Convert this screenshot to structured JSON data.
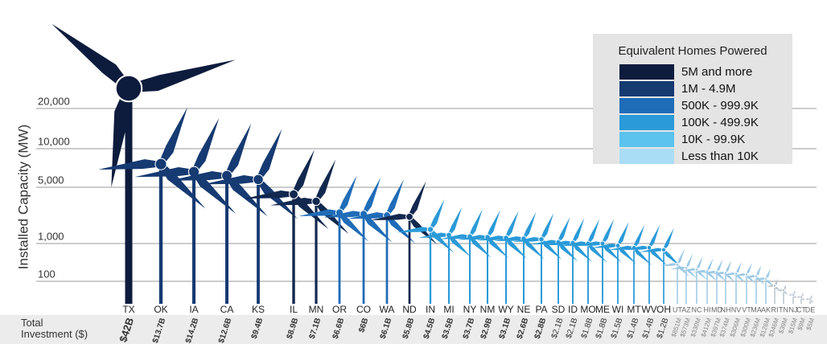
{
  "chart_data": {
    "type": "turbine",
    "y_label": "Installed Capacity (MW)",
    "investment_label": "Total Investment ($)",
    "ylim": [
      0,
      30000
    ],
    "yticks": [
      100,
      {
        "value": 1000,
        "label": "1,000"
      },
      {
        "value": 5000,
        "label": "5,000"
      },
      {
        "value": 10000,
        "label": "10,000"
      },
      {
        "value": 20000,
        "label": "20,000"
      }
    ],
    "grid": true,
    "categories": [
      "TX",
      "OK",
      "IA",
      "CA",
      "KS",
      "IL",
      "MN",
      "OR",
      "CO",
      "WA",
      "ND",
      "IN",
      "MI",
      "NY",
      "NM",
      "WY",
      "NE",
      "PA",
      "SD",
      "ID",
      "MO",
      "ME",
      "WI",
      "MT",
      "WV",
      "OH",
      "UT",
      "AZ",
      "NC",
      "HI",
      "MD",
      "NH",
      "NV",
      "VT",
      "MA",
      "AK",
      "RI",
      "TN",
      "NJ",
      "CT",
      "DE"
    ],
    "values": [
      25000,
      8000,
      7000,
      6500,
      6000,
      4500,
      4000,
      3200,
      3100,
      3000,
      2900,
      2000,
      1600,
      1500,
      1450,
      1400,
      1350,
      1300,
      1100,
      1050,
      1000,
      1000,
      950,
      900,
      900,
      850,
      500,
      420,
      380,
      340,
      320,
      300,
      280,
      260,
      220,
      160,
      80,
      60,
      40,
      30,
      20
    ],
    "investment": [
      "$42B",
      "$13.7B",
      "$14.2B",
      "$12.6B",
      "$9.4B",
      "$8.9B",
      "$7.1B",
      "$6.6B",
      "$6B",
      "$6.1B",
      "$5.8B",
      "$4.5B",
      "$3.5B",
      "$3.7B",
      "$2.9B",
      "$3.1B",
      "$2.6B",
      "$2.8B",
      "$2.1B",
      "$2.1B",
      "$1.8B",
      "$1.8B",
      "$1.5B",
      "$1.4B",
      "$1.4B",
      "$1.2B",
      "$851M",
      "$573M",
      "$330M",
      "$412M",
      "$397M",
      "$374M",
      "$306M",
      "$300M",
      "$236M",
      "$126M",
      "$346M",
      "$39M",
      "$15M",
      "$9M",
      "$5M"
    ],
    "colors": [
      "#0d1b3d",
      "#163a72",
      "#163a72",
      "#163a72",
      "#163a72",
      "#12284f",
      "#12284f",
      "#1f6cb8",
      "#1f6cb8",
      "#1f6cb8",
      "#12284f",
      "#2a9ad8",
      "#2a9ad8",
      "#2a9ad8",
      "#2a9ad8",
      "#2a9ad8",
      "#2a9ad8",
      "#2a9ad8",
      "#2a9ad8",
      "#2a9ad8",
      "#2a9ad8",
      "#2a9ad8",
      "#2a9ad8",
      "#2a9ad8",
      "#2a9ad8",
      "#2a9ad8",
      "#9cc9e6",
      "#9cc9e6",
      "#9cc9e6",
      "#9cc9e6",
      "#9cc9e6",
      "#9cc9e6",
      "#9cc9e6",
      "#9cc9e6",
      "#9cc9e6",
      "#9cc9e6",
      "#b9c4cc",
      "#b9c4cc",
      "#b9c4cc",
      "#b9c4cc",
      "#b9c4cc"
    ],
    "legend": {
      "title": "Equivalent Homes Powered",
      "items": [
        {
          "name": "5M and more",
          "color": "#0d1b3d"
        },
        {
          "name": "1M - 4.9M",
          "color": "#163a72"
        },
        {
          "name": "500K - 999.9K",
          "color": "#1f6cb8"
        },
        {
          "name": "100K - 499.9K",
          "color": "#2a9ad8"
        },
        {
          "name": "10K - 99.9K",
          "color": "#5bc3ee"
        },
        {
          "name": "Less than 10K",
          "color": "#a9ddf6"
        }
      ]
    }
  }
}
